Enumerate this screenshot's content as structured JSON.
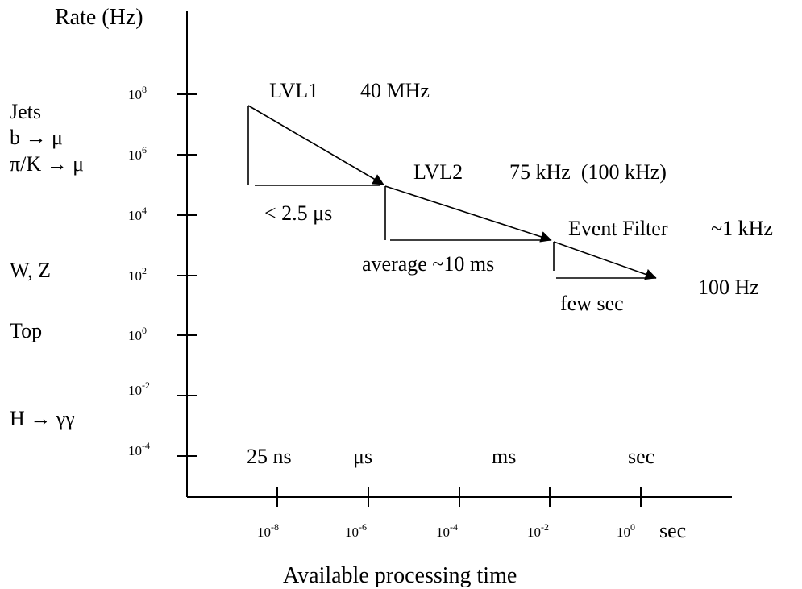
{
  "y_axis": {
    "title": "Rate (Hz)",
    "ticks": [
      {
        "base": "10",
        "exp": "8"
      },
      {
        "base": "10",
        "exp": "6"
      },
      {
        "base": "10",
        "exp": "4"
      },
      {
        "base": "10",
        "exp": "2"
      },
      {
        "base": "10",
        "exp": "0"
      },
      {
        "base": "10",
        "exp": "-2"
      },
      {
        "base": "10",
        "exp": "-4"
      }
    ]
  },
  "x_axis": {
    "title": "Available processing time",
    "ticks": [
      {
        "base": "10",
        "exp": "-8"
      },
      {
        "base": "10",
        "exp": "-6"
      },
      {
        "base": "10",
        "exp": "-4"
      },
      {
        "base": "10",
        "exp": "-2"
      },
      {
        "base": "10",
        "exp": "0",
        "suffix": "sec"
      }
    ],
    "scale_words": [
      "25 ns",
      "μs",
      "ms",
      "sec"
    ]
  },
  "physics_labels": [
    "Jets",
    "b → μ",
    "π/K → μ",
    "W, Z",
    "Top",
    "H → γγ"
  ],
  "stages": [
    {
      "name": "LVL1",
      "rate": "40 MHz",
      "latency": "< 2.5 μs"
    },
    {
      "name": "LVL2",
      "rate": "75 kHz  (100 kHz)",
      "latency": "average ~10 ms"
    },
    {
      "name": "Event Filter",
      "rate": "~1 kHz",
      "latency": "few sec"
    }
  ],
  "output_rate": "100 Hz"
}
